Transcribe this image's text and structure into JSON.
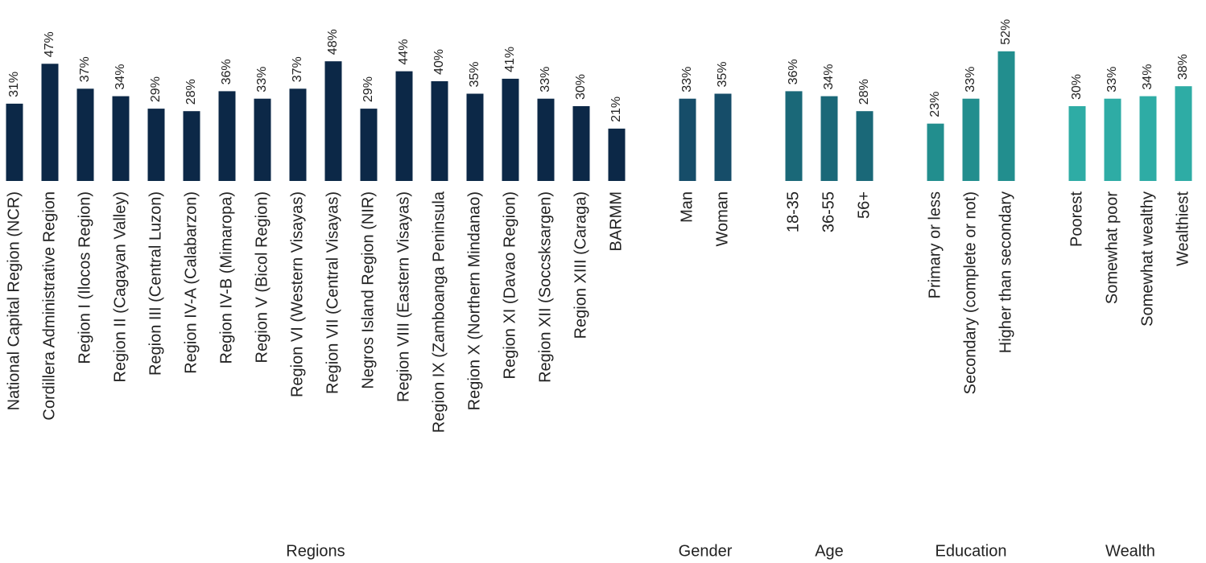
{
  "chart_data": {
    "type": "bar",
    "groups": [
      {
        "name": "Regions",
        "color": "#0c2847",
        "categories": [
          "National Capital Region (NCR)",
          "Cordillera Administrative Region",
          "Region I (Ilocos Region)",
          "Region II (Cagayan Valley)",
          "Region III (Central Luzon)",
          "Region IV-A (Calabarzon)",
          "Region IV-B (Mimaropa)",
          "Region V (Bicol Region)",
          "Region VI (Western Visayas)",
          "Region VII (Central Visayas)",
          "Negros Island Region (NIR)",
          "Region VIII (Eastern Visayas)",
          "Region IX (Zamboanga Peninsula",
          "Region X (Northern Mindanao)",
          "Region XI (Davao Region)",
          "Region XII (Soccsksargen)",
          "Region XIII (Caraga)",
          "BARMM"
        ],
        "values": [
          31,
          47,
          37,
          34,
          29,
          28,
          36,
          33,
          37,
          48,
          29,
          44,
          40,
          35,
          41,
          33,
          30,
          21
        ],
        "value_labels": [
          "31%",
          "47%",
          "37%",
          "34%",
          "29%",
          "28%",
          "36%",
          "33%",
          "37%",
          "48%",
          "29%",
          "44%",
          "40%",
          "35%",
          "41%",
          "33%",
          "30%",
          "21%"
        ]
      },
      {
        "name": "Gender",
        "color": "#164d69",
        "categories": [
          "Man",
          "Woman"
        ],
        "values": [
          33,
          35
        ],
        "value_labels": [
          "33%",
          "35%"
        ]
      },
      {
        "name": "Age",
        "color": "#1a6878",
        "categories": [
          "18-35",
          "36-55",
          "56+"
        ],
        "values": [
          36,
          34,
          28
        ],
        "value_labels": [
          "36%",
          "34%",
          "28%"
        ]
      },
      {
        "name": "Education",
        "color": "#228e8e",
        "categories": [
          "Primary or less",
          "Secondary (complete or not)",
          "Higher than secondary"
        ],
        "values": [
          23,
          33,
          52
        ],
        "value_labels": [
          "23%",
          "33%",
          "52%"
        ]
      },
      {
        "name": "Wealth",
        "color": "#2eaca5",
        "categories": [
          "Poorest",
          "Somewhat poor",
          "Somewhat wealthy",
          "Wealthiest"
        ],
        "values": [
          30,
          33,
          34,
          38
        ],
        "value_labels": [
          "30%",
          "33%",
          "34%",
          "38%"
        ]
      }
    ]
  }
}
